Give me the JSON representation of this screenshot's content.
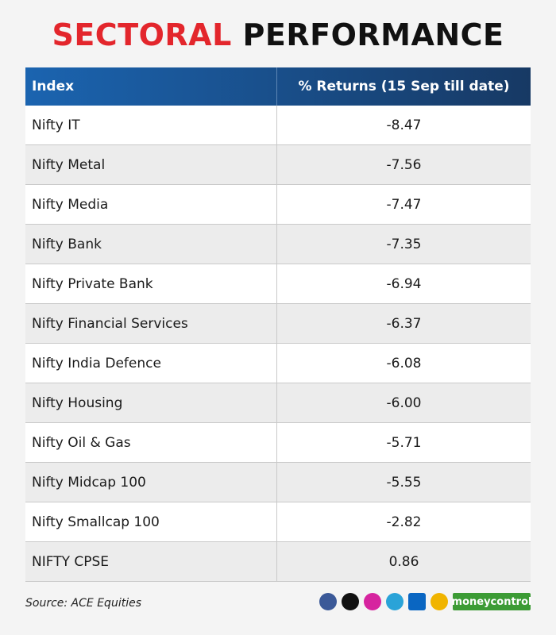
{
  "title": {
    "highlight": "SECTORAL",
    "rest": "PERFORMANCE"
  },
  "table": {
    "header": [
      "Index",
      "% Returns (15 Sep till date)"
    ],
    "rows": [
      [
        "Nifty IT",
        "-8.47"
      ],
      [
        "Nifty Metal",
        "-7.56"
      ],
      [
        "Nifty Media",
        "-7.47"
      ],
      [
        "Nifty Bank",
        "-7.35"
      ],
      [
        "Nifty Private Bank",
        "-6.94"
      ],
      [
        "Nifty Financial Services",
        "-6.37"
      ],
      [
        "Nifty India Defence",
        "-6.08"
      ],
      [
        "Nifty Housing",
        "-6.00"
      ],
      [
        "Nifty Oil & Gas",
        "-5.71"
      ],
      [
        "Nifty Midcap 100",
        "-5.55"
      ],
      [
        "Nifty Smallcap 100",
        "-2.82"
      ],
      [
        "NIFTY CPSE",
        "0.86"
      ]
    ]
  },
  "footer": {
    "source": "Source: ACE Equities",
    "brand": "moneycontrol"
  }
}
